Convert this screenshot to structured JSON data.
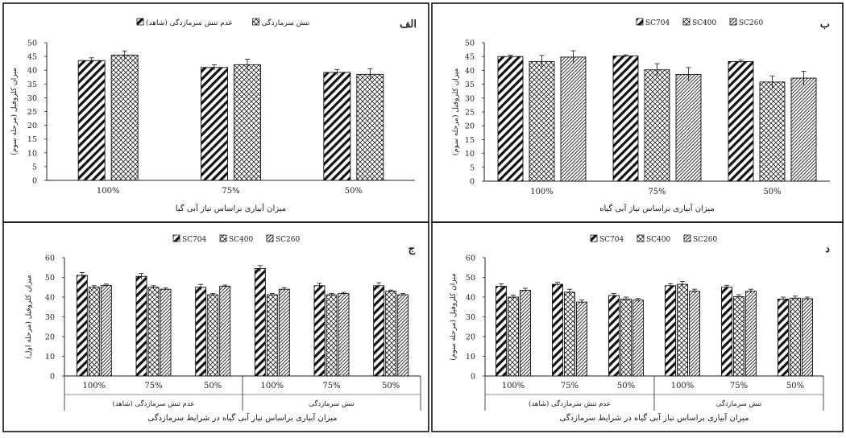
{
  "colors": {
    "bar_stroke": "#111111",
    "hatch": "#111111",
    "background": "#ffffff",
    "error_bar": "#111111"
  },
  "chart_data": [
    {
      "panel": "tl",
      "type": "bar",
      "title": "الف",
      "ylabel": "میزان کلروفیل (مرحله سوم)",
      "xlabel": "میزان آبیاری براساس نیاز آبی گیا",
      "ylim": [
        0,
        50
      ],
      "ytick_step": 5,
      "categories": [
        "100%",
        "75%",
        "50%"
      ],
      "series": [
        {
          "name": "عدم تنش سرمازدگی (شاهد)",
          "pattern": "diag",
          "values": [
            43.5,
            41,
            39.2
          ],
          "errors": [
            1.0,
            1.0,
            1.0
          ]
        },
        {
          "name": "تنش سرمازدگی",
          "pattern": "cross",
          "values": [
            45.5,
            42,
            38.5
          ],
          "errors": [
            1.5,
            2.0,
            2.0
          ]
        }
      ]
    },
    {
      "panel": "tr",
      "type": "bar",
      "title": "ب",
      "ylabel": "میزان کلروفیل (مرحله سوم)",
      "xlabel": "میزان آبیاری براساس نیاز آبی گیاه",
      "ylim": [
        0,
        50
      ],
      "ytick_step": 5,
      "categories": [
        "100%",
        "75%",
        "50%"
      ],
      "series": [
        {
          "name": "SC704",
          "pattern": "diag",
          "values": [
            45,
            45.2,
            43.2
          ],
          "errors": [
            0.5,
            0.4,
            0.5
          ]
        },
        {
          "name": "SC400",
          "pattern": "cross",
          "values": [
            43.2,
            40.2,
            35.8
          ],
          "errors": [
            2.2,
            2.2,
            2.2
          ]
        },
        {
          "name": "SC260",
          "pattern": "fine",
          "values": [
            44.8,
            38.5,
            37.2
          ],
          "errors": [
            2.3,
            2.5,
            2.5
          ]
        }
      ]
    },
    {
      "panel": "bl",
      "type": "bar",
      "title": "ج",
      "ylabel": "میزان کلروفیل (مرحله اول)",
      "xlabel": "میزان آبیاری براساس نیاز آبی گیاه در شرایط سرمازدگی",
      "ylim": [
        0,
        60
      ],
      "ytick_step": 10,
      "categories": [
        "100%",
        "75%",
        "50%",
        "100%",
        "75%",
        "50%"
      ],
      "groups": [
        {
          "label": "عدم تنش سرمازدگی (شاهد)",
          "span": [
            0,
            2
          ]
        },
        {
          "label": "تنش سرمازدگی",
          "span": [
            3,
            5
          ]
        }
      ],
      "series": [
        {
          "name": "SC704",
          "pattern": "diag",
          "values": [
            51,
            50.5,
            45,
            54.5,
            45.8,
            45.8
          ],
          "errors": [
            1.5,
            1.5,
            1.5,
            1.5,
            1.2,
            1.5
          ]
        },
        {
          "name": "SC400",
          "pattern": "cross",
          "values": [
            45,
            45,
            41.2,
            41.2,
            41.2,
            43
          ],
          "errors": [
            0.8,
            0.8,
            0.6,
            0.6,
            0.6,
            0.6
          ]
        },
        {
          "name": "SC260",
          "pattern": "fine",
          "values": [
            46,
            44,
            45.5,
            44,
            41.8,
            41.2
          ],
          "errors": [
            0.6,
            0.6,
            0.6,
            0.8,
            0.6,
            0.6
          ]
        }
      ]
    },
    {
      "panel": "br",
      "type": "bar",
      "title": "د",
      "ylabel": "میزان کلروفیل (مرحله سوم)",
      "xlabel": "میزان آبیاری براساس نیاز آبی گیاه در شرایط سرمازدگی",
      "ylim": [
        0,
        60
      ],
      "ytick_step": 10,
      "categories": [
        "100%",
        "75%",
        "50%",
        "100%",
        "75%",
        "50%"
      ],
      "groups": [
        {
          "label": "عدم تنش سرمازدگی (شاهد)",
          "span": [
            0,
            2
          ]
        },
        {
          "label": "تنش سرمازدگی",
          "span": [
            3,
            5
          ]
        }
      ],
      "series": [
        {
          "name": "SC704",
          "pattern": "diag",
          "values": [
            45.5,
            46.5,
            40.8,
            45.8,
            45,
            39
          ],
          "errors": [
            1.2,
            1.0,
            1.0,
            1.0,
            1.0,
            1.0
          ]
        },
        {
          "name": "SC400",
          "pattern": "cross",
          "values": [
            40,
            42.5,
            39,
            46.5,
            40.2,
            39.5
          ],
          "errors": [
            1.0,
            1.5,
            1.0,
            1.5,
            1.0,
            1.0
          ]
        },
        {
          "name": "SC260",
          "pattern": "fine",
          "values": [
            43.5,
            37.5,
            38.5,
            43,
            43,
            39.2
          ],
          "errors": [
            1.0,
            1.0,
            0.8,
            1.0,
            1.0,
            0.8
          ]
        }
      ]
    }
  ]
}
